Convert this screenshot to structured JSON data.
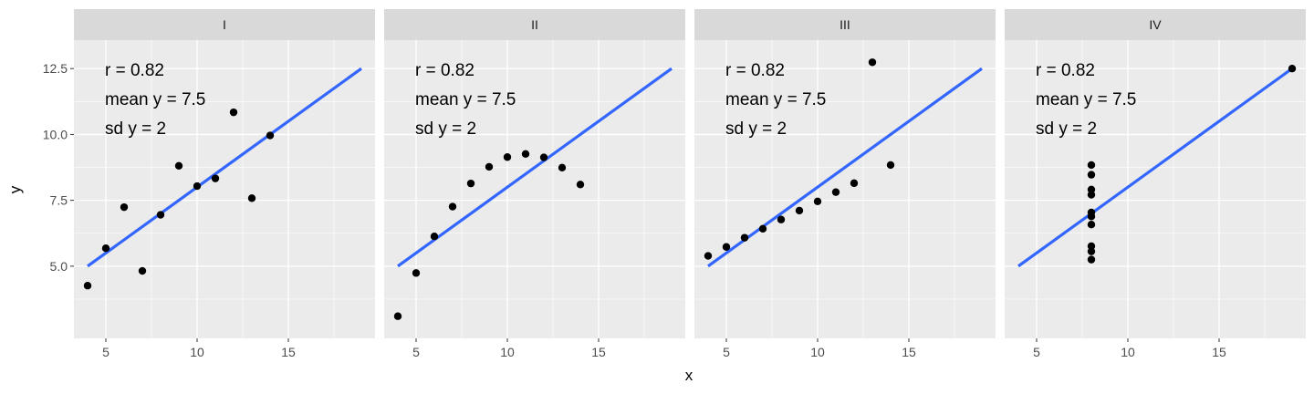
{
  "chart_data": {
    "type": "scatter",
    "xlabel": "x",
    "ylabel": "y",
    "xlim": [
      3.25,
      19.75
    ],
    "ylim": [
      2.26,
      13.58
    ],
    "x_ticks": [
      5,
      10,
      15
    ],
    "x_tick_labels": [
      "5",
      "10",
      "15"
    ],
    "y_ticks": [
      5.0,
      7.5,
      10.0,
      12.5
    ],
    "y_tick_labels": [
      "5.0",
      "7.5",
      "10.0",
      "12.5"
    ],
    "grid": true,
    "colors": {
      "points": "#000000",
      "line": "#3366ff",
      "panel_bg": "#ebebeb",
      "strip_bg": "#d9d9d9",
      "grid": "#ffffff"
    },
    "panels": [
      {
        "label": "I",
        "annotations": [
          "r = 0.82",
          "mean y = 7.5",
          "sd y = 2"
        ],
        "fit_line": {
          "x": [
            4,
            19
          ],
          "y": [
            5.0,
            12.5
          ]
        },
        "points": [
          {
            "x": 10,
            "y": 8.04
          },
          {
            "x": 8,
            "y": 6.95
          },
          {
            "x": 13,
            "y": 7.58
          },
          {
            "x": 9,
            "y": 8.81
          },
          {
            "x": 11,
            "y": 8.33
          },
          {
            "x": 14,
            "y": 9.96
          },
          {
            "x": 6,
            "y": 7.24
          },
          {
            "x": 4,
            "y": 4.26
          },
          {
            "x": 12,
            "y": 10.84
          },
          {
            "x": 7,
            "y": 4.82
          },
          {
            "x": 5,
            "y": 5.68
          }
        ]
      },
      {
        "label": "II",
        "annotations": [
          "r = 0.82",
          "mean y = 7.5",
          "sd y = 2"
        ],
        "fit_line": {
          "x": [
            4,
            19
          ],
          "y": [
            5.0,
            12.5
          ]
        },
        "points": [
          {
            "x": 10,
            "y": 9.14
          },
          {
            "x": 8,
            "y": 8.14
          },
          {
            "x": 13,
            "y": 8.74
          },
          {
            "x": 9,
            "y": 8.77
          },
          {
            "x": 11,
            "y": 9.26
          },
          {
            "x": 14,
            "y": 8.1
          },
          {
            "x": 6,
            "y": 6.13
          },
          {
            "x": 4,
            "y": 3.1
          },
          {
            "x": 12,
            "y": 9.13
          },
          {
            "x": 7,
            "y": 7.26
          },
          {
            "x": 5,
            "y": 4.74
          }
        ]
      },
      {
        "label": "III",
        "annotations": [
          "r = 0.82",
          "mean y = 7.5",
          "sd y = 2"
        ],
        "fit_line": {
          "x": [
            4,
            19
          ],
          "y": [
            5.0,
            12.5
          ]
        },
        "points": [
          {
            "x": 10,
            "y": 7.46
          },
          {
            "x": 8,
            "y": 6.77
          },
          {
            "x": 13,
            "y": 12.74
          },
          {
            "x": 9,
            "y": 7.11
          },
          {
            "x": 11,
            "y": 7.81
          },
          {
            "x": 14,
            "y": 8.84
          },
          {
            "x": 6,
            "y": 6.08
          },
          {
            "x": 4,
            "y": 5.39
          },
          {
            "x": 12,
            "y": 8.15
          },
          {
            "x": 7,
            "y": 6.42
          },
          {
            "x": 5,
            "y": 5.73
          }
        ]
      },
      {
        "label": "IV",
        "annotations": [
          "r = 0.82",
          "mean y = 7.5",
          "sd y = 2"
        ],
        "fit_line": {
          "x": [
            4,
            19
          ],
          "y": [
            5.0,
            12.5
          ]
        },
        "points": [
          {
            "x": 8,
            "y": 6.58
          },
          {
            "x": 8,
            "y": 5.76
          },
          {
            "x": 8,
            "y": 7.71
          },
          {
            "x": 8,
            "y": 8.84
          },
          {
            "x": 8,
            "y": 8.47
          },
          {
            "x": 8,
            "y": 7.04
          },
          {
            "x": 8,
            "y": 5.25
          },
          {
            "x": 19,
            "y": 12.5
          },
          {
            "x": 8,
            "y": 5.56
          },
          {
            "x": 8,
            "y": 7.91
          },
          {
            "x": 8,
            "y": 6.89
          }
        ]
      }
    ]
  }
}
